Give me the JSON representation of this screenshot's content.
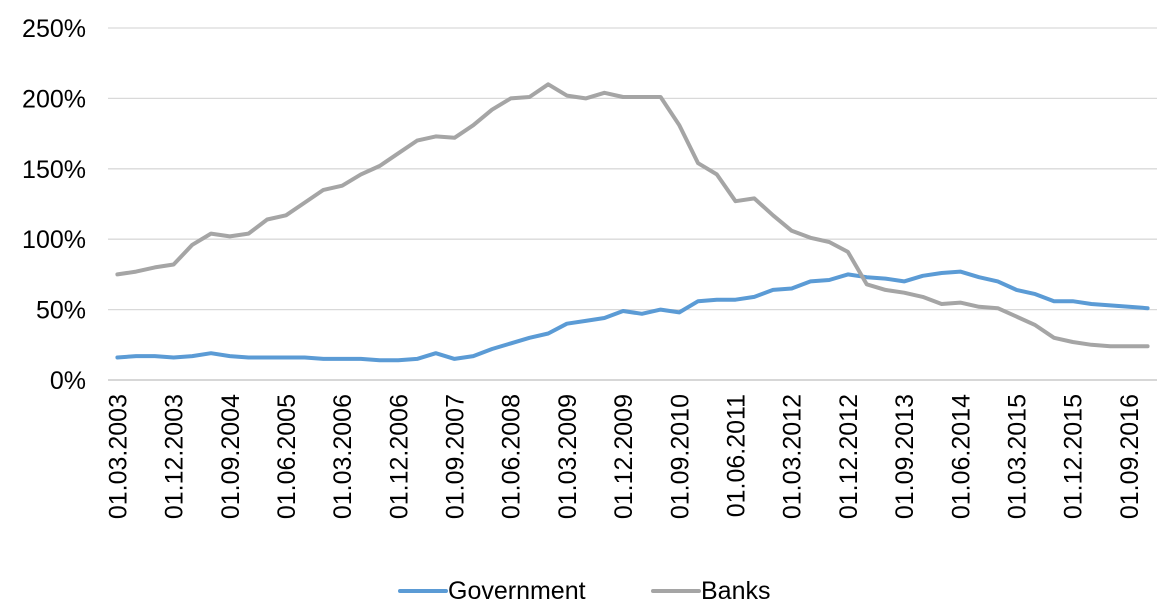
{
  "chart_data": {
    "type": "line",
    "title": "",
    "xlabel": "",
    "ylabel": "",
    "y_unit": "%",
    "ylim": [
      0,
      250
    ],
    "y_ticks": [
      0,
      50,
      100,
      150,
      200,
      250
    ],
    "y_tick_labels": [
      "0%",
      "50%",
      "100%",
      "150%",
      "200%",
      "250%"
    ],
    "grid": "horizontal",
    "legend": "bottom",
    "x": [
      "01.03.2003",
      "01.06.2003",
      "01.09.2003",
      "01.12.2003",
      "01.03.2004",
      "01.06.2004",
      "01.09.2004",
      "01.12.2004",
      "01.03.2005",
      "01.06.2005",
      "01.09.2005",
      "01.12.2005",
      "01.03.2006",
      "01.06.2006",
      "01.09.2006",
      "01.12.2006",
      "01.03.2007",
      "01.06.2007",
      "01.09.2007",
      "01.12.2007",
      "01.03.2008",
      "01.06.2008",
      "01.09.2008",
      "01.12.2008",
      "01.03.2009",
      "01.06.2009",
      "01.09.2009",
      "01.12.2009",
      "01.03.2010",
      "01.06.2010",
      "01.09.2010",
      "01.12.2010",
      "01.03.2011",
      "01.06.2011",
      "01.09.2011",
      "01.12.2011",
      "01.03.2012",
      "01.06.2012",
      "01.09.2012",
      "01.12.2012",
      "01.03.2013",
      "01.06.2013",
      "01.09.2013",
      "01.12.2013",
      "01.03.2014",
      "01.06.2014",
      "01.09.2014",
      "01.12.2014",
      "01.03.2015",
      "01.06.2015",
      "01.09.2015",
      "01.12.2015",
      "01.03.2016",
      "01.06.2016",
      "01.09.2016",
      "01.12.2016"
    ],
    "x_tick_labels": [
      "01.03.2003",
      "01.12.2003",
      "01.09.2004",
      "01.06.2005",
      "01.03.2006",
      "01.12.2006",
      "01.09.2007",
      "01.06.2008",
      "01.03.2009",
      "01.12.2009",
      "01.09.2010",
      "01.06.2011",
      "01.03.2012",
      "01.12.2012",
      "01.09.2013",
      "01.06.2014",
      "01.03.2015",
      "01.12.2015",
      "01.09.2016"
    ],
    "series": [
      {
        "name": "Government",
        "color": "#5b9bd5",
        "values": [
          16,
          17,
          17,
          16,
          17,
          19,
          17,
          16,
          16,
          16,
          16,
          15,
          15,
          15,
          14,
          14,
          15,
          19,
          15,
          17,
          22,
          26,
          30,
          33,
          40,
          42,
          44,
          49,
          47,
          50,
          48,
          56,
          57,
          57,
          59,
          64,
          65,
          70,
          71,
          75,
          73,
          72,
          70,
          74,
          76,
          77,
          73,
          70,
          64,
          61,
          56,
          56,
          54,
          53,
          52,
          51
        ]
      },
      {
        "name": "Banks",
        "color": "#a5a5a5",
        "values": [
          75,
          77,
          80,
          82,
          96,
          104,
          102,
          104,
          114,
          117,
          126,
          135,
          138,
          146,
          152,
          161,
          170,
          173,
          172,
          181,
          192,
          200,
          201,
          210,
          202,
          200,
          204,
          201,
          201,
          201,
          181,
          154,
          146,
          127,
          129,
          117,
          106,
          101,
          98,
          91,
          68,
          64,
          62,
          59,
          54,
          55,
          52,
          51,
          45,
          39,
          30,
          27,
          25,
          24,
          24,
          24
        ]
      }
    ]
  }
}
